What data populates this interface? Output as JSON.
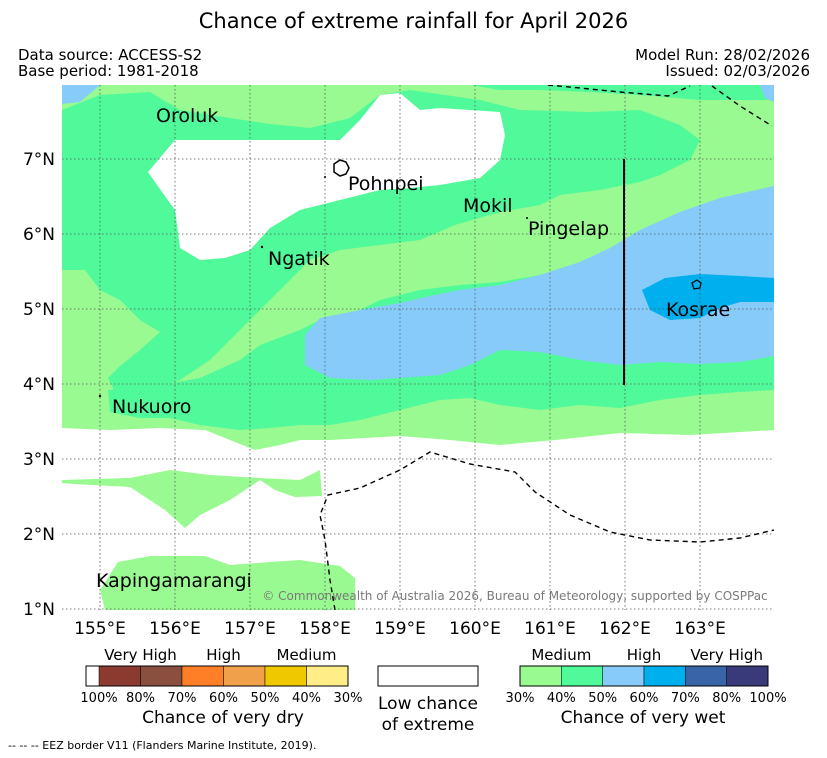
{
  "title": "Chance of extreme rainfall for April 2026",
  "header": {
    "data_source": "Data source: ACCESS-S2",
    "base_period": "Base period: 1981-2018",
    "model_run": "Model Run: 28/02/2026",
    "issued": "Issued: 02/03/2026"
  },
  "axes": {
    "lon_labels": [
      "155°E",
      "156°E",
      "157°E",
      "158°E",
      "159°E",
      "160°E",
      "161°E",
      "162°E",
      "163°E"
    ],
    "lat_labels": [
      "7°N",
      "6°N",
      "5°N",
      "4°N",
      "3°N",
      "2°N",
      "1°N"
    ]
  },
  "places": {
    "oroluk": "Oroluk",
    "pohnpei": "Pohnpei",
    "mokil": "Mokil",
    "pingelap": "Pingelap",
    "ngatik": "Ngatik",
    "kosrae": "Kosrae",
    "nukuoro": "Nukuoro",
    "kapingamarangi": "Kapingamarangi"
  },
  "copyright": "© Commonwealth of Australia 2026, Bureau of Meteorology, supported by COSPPac",
  "legend": {
    "dry": {
      "categories": [
        "Very High",
        "High",
        "Medium"
      ],
      "colors": [
        "#8b3a2f",
        "#8b4f3f",
        "#ff7f27",
        "#f0a048",
        "#f0c800",
        "#ffee88"
      ],
      "percents": [
        "100%",
        "80%",
        "70%",
        "60%",
        "50%",
        "40%",
        "30%"
      ],
      "title": "Chance of very dry"
    },
    "low": {
      "line1": "Low chance",
      "line2": "of extreme"
    },
    "wet": {
      "categories": [
        "Medium",
        "High",
        "Very High"
      ],
      "colors": [
        "#98fa90",
        "#50fa9a",
        "#87cbfa",
        "#00b0ee",
        "#3a64a8",
        "#3a3a7a"
      ],
      "percents": [
        "30%",
        "40%",
        "50%",
        "60%",
        "70%",
        "80%",
        "100%"
      ],
      "title": "Chance of very wet"
    }
  },
  "footnote": "--  --  -- EEZ border V11 (Flanders Marine Institute, 2019)."
}
